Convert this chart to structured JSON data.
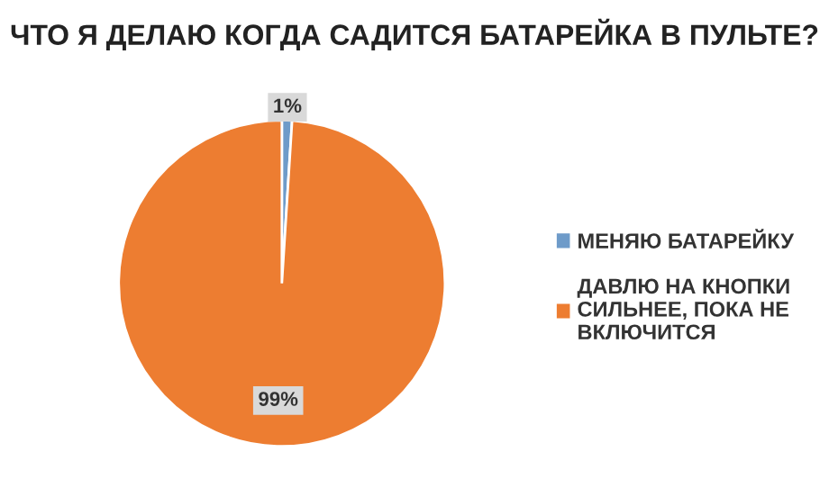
{
  "chart_data": {
    "type": "pie",
    "title": "ЧТО Я ДЕЛАЮ КОГДА САДИТСЯ БАТАРЕЙКА В ПУЛЬТЕ?",
    "categories": [
      "МЕНЯЮ БАТАРЕЙКУ",
      "ДАВЛЮ НА КНОПКИ\nСИЛЬНЕЕ, ПОКА НЕ\nВКЛЮЧИТСЯ"
    ],
    "values": [
      1,
      99
    ],
    "value_labels": [
      "1%",
      "99%"
    ],
    "colors": [
      "#6e9bc9",
      "#ed7d31"
    ],
    "legend": "right"
  }
}
